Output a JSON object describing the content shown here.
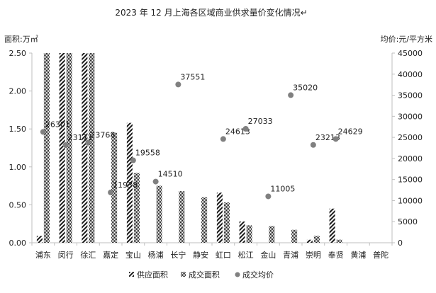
{
  "chart_data": {
    "type": "bar",
    "title": "2023 年 12 月上海各区域商业供求量价变化情况↵",
    "ylabel_left": "面积:万㎡",
    "ylabel_right": "均价:元/平方米",
    "ylim_left": [
      0,
      2.5
    ],
    "ylim_right": [
      0,
      45000
    ],
    "yticks_left": [
      "0.00",
      "0.50",
      "1.00",
      "1.50",
      "2.00",
      "2.50"
    ],
    "yticks_right": [
      "0",
      "5000",
      "10000",
      "15000",
      "20000",
      "25000",
      "30000",
      "35000",
      "40000",
      "45000"
    ],
    "categories": [
      "浦东",
      "闵行",
      "徐汇",
      "嘉定",
      "宝山",
      "杨浦",
      "长宁",
      "静安",
      "虹口",
      "松江",
      "金山",
      "青浦",
      "崇明",
      "奉贤",
      "黄浦",
      "普陀"
    ],
    "series": [
      {
        "name": "供应面积",
        "axis": "left",
        "kind": "bar",
        "pattern": "diagonal",
        "values": [
          0.09,
          2.5,
          2.5,
          0,
          1.58,
          0,
          0,
          0,
          0.66,
          0.28,
          0,
          0,
          0.04,
          0.45,
          0,
          0
        ]
      },
      {
        "name": "成交面积",
        "axis": "left",
        "kind": "bar",
        "pattern": "checker",
        "values": [
          2.5,
          2.5,
          2.5,
          1.45,
          0.92,
          0.75,
          0.68,
          0.6,
          0.53,
          0.23,
          0.22,
          0.17,
          0.09,
          0.04,
          0,
          0
        ]
      },
      {
        "name": "成交均价",
        "axis": "right",
        "kind": "scatter",
        "values": [
          26301,
          23171,
          23768,
          11938,
          19558,
          14510,
          37551,
          null,
          24613,
          27033,
          11005,
          35020,
          23213,
          24629,
          null,
          null
        ],
        "labels": [
          "26301",
          "23171",
          "23768",
          "11938",
          "19558",
          "14510",
          "37551",
          "",
          "24613",
          "27033",
          "11005",
          "35020",
          "23213",
          "24629",
          "",
          ""
        ]
      }
    ],
    "legend": {
      "position": "bottom",
      "items": [
        "供应面积",
        "成交面积",
        "成交均价"
      ]
    },
    "grid": false,
    "colors": {
      "bar": "#222222",
      "point": "#808080",
      "axis": "#bfbfbf",
      "text": "#222222"
    }
  }
}
